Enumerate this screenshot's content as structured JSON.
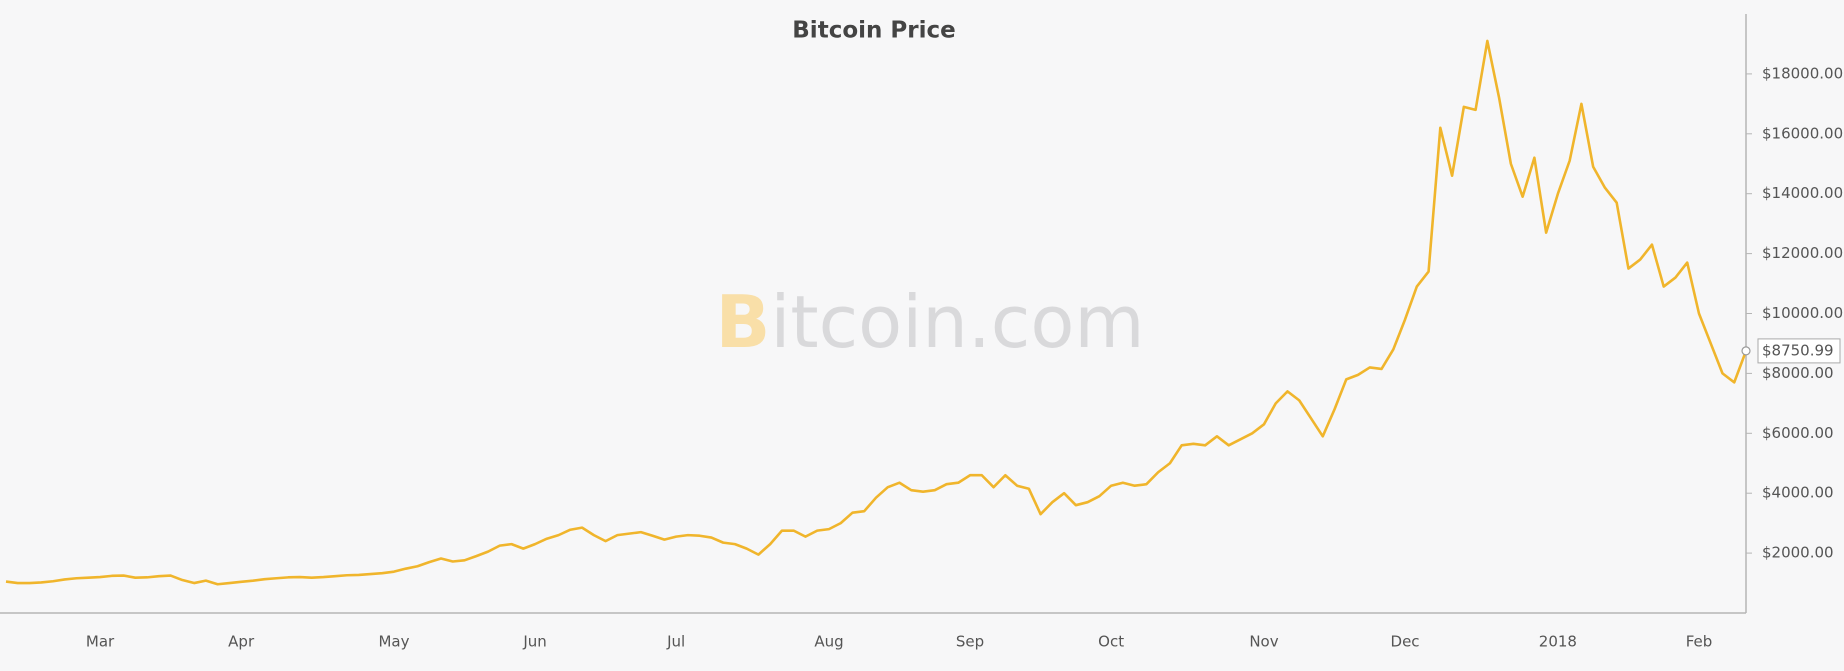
{
  "chart_data": {
    "type": "line",
    "title": "Bitcoin Price",
    "watermark": "Bitcoin.com",
    "categories": [
      null,
      null,
      null,
      null,
      null,
      null,
      null,
      null,
      "Mar",
      null,
      null,
      null,
      null,
      null,
      null,
      null,
      null,
      null,
      null,
      null,
      "Apr",
      null,
      null,
      null,
      null,
      null,
      null,
      null,
      null,
      null,
      null,
      null,
      null,
      "May",
      null,
      null,
      null,
      null,
      null,
      null,
      null,
      null,
      null,
      null,
      null,
      "Jun",
      null,
      null,
      null,
      null,
      null,
      null,
      null,
      null,
      null,
      null,
      null,
      "Jul",
      null,
      null,
      null,
      null,
      null,
      null,
      null,
      null,
      null,
      null,
      null,
      null,
      "Aug",
      null,
      null,
      null,
      null,
      null,
      null,
      null,
      null,
      null,
      null,
      null,
      "Sep",
      null,
      null,
      null,
      null,
      null,
      null,
      null,
      null,
      null,
      null,
      null,
      "Oct",
      null,
      null,
      null,
      null,
      null,
      null,
      null,
      null,
      null,
      null,
      null,
      null,
      "Nov",
      null,
      null,
      null,
      null,
      null,
      null,
      null,
      null,
      null,
      null,
      null,
      "Dec",
      null,
      null,
      null,
      null,
      null,
      null,
      null,
      null,
      null,
      null,
      null,
      null,
      "2018",
      null,
      null,
      null,
      null,
      null,
      null,
      null,
      null,
      null,
      null,
      null,
      "Feb",
      null,
      null,
      null,
      null
    ],
    "series": [
      {
        "name": "Bitcoin Price",
        "color": "#f0b52c",
        "values": [
          1050,
          1000,
          1000,
          1020,
          1060,
          1120,
          1160,
          1180,
          1200,
          1240,
          1250,
          1180,
          1190,
          1230,
          1250,
          1100,
          1000,
          1080,
          960,
          1000,
          1040,
          1080,
          1130,
          1160,
          1190,
          1200,
          1180,
          1200,
          1230,
          1260,
          1270,
          1300,
          1330,
          1380,
          1480,
          1560,
          1700,
          1820,
          1720,
          1760,
          1900,
          2050,
          2250,
          2300,
          2150,
          2300,
          2480,
          2600,
          2780,
          2850,
          2600,
          2400,
          2600,
          2650,
          2700,
          2580,
          2450,
          2550,
          2600,
          2580,
          2520,
          2350,
          2300,
          2150,
          1950,
          2300,
          2750,
          2750,
          2550,
          2750,
          2800,
          3000,
          3350,
          3400,
          3850,
          4200,
          4350,
          4100,
          4050,
          4100,
          4300,
          4350,
          4600,
          4600,
          4200,
          4600,
          4250,
          4150,
          3300,
          3700,
          4000,
          3600,
          3700,
          3900,
          4250,
          4350,
          4250,
          4300,
          4700,
          5000,
          5600,
          5650,
          5600,
          5900,
          5600,
          5800,
          6000,
          6300,
          7000,
          7400,
          7100,
          6500,
          5900,
          6800,
          7800,
          7950,
          8200,
          8150,
          8800,
          9800,
          10900,
          11400,
          16200,
          14600,
          16900,
          16800,
          19100,
          17200,
          15000,
          13900,
          15200,
          12700,
          14000,
          15100,
          17000,
          14900,
          14200,
          13700,
          11500,
          11800,
          12300,
          10900,
          11200,
          11700,
          10000,
          9000,
          8000,
          7700,
          8750.99
        ]
      }
    ],
    "end_label": "$8750.99",
    "ylim": [
      0,
      20000
    ],
    "yticks": [
      {
        "value": 2000,
        "label": "$2000.00"
      },
      {
        "value": 4000,
        "label": "$4000.00"
      },
      {
        "value": 6000,
        "label": "$6000.00"
      },
      {
        "value": 8000,
        "label": "$8000.00"
      },
      {
        "value": 10000,
        "label": "$10000.00"
      },
      {
        "value": 12000,
        "label": "$12000.00"
      },
      {
        "value": 14000,
        "label": "$14000.00"
      },
      {
        "value": 16000,
        "label": "$16000.00"
      },
      {
        "value": 18000,
        "label": "$18000.00"
      }
    ],
    "grid": false,
    "y_axis_side": "right"
  }
}
